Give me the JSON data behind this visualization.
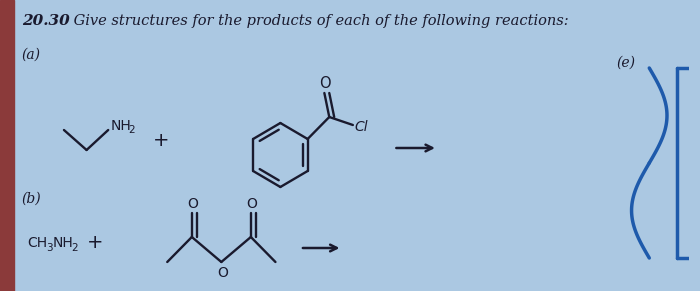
{
  "background_color": "#abc8e2",
  "title_bold": "20.30",
  "subtitle_text": " Give structures for the products of each of the following reactions:",
  "label_a": "(a)",
  "label_b": "(b)",
  "label_e": "(e)",
  "text_color": "#1a1a2e",
  "structure_color": "#1a1a2e",
  "blue_curve_color": "#1e5aab",
  "fig_width": 7.0,
  "fig_height": 2.91,
  "left_bar_color": "#8b3a3a"
}
